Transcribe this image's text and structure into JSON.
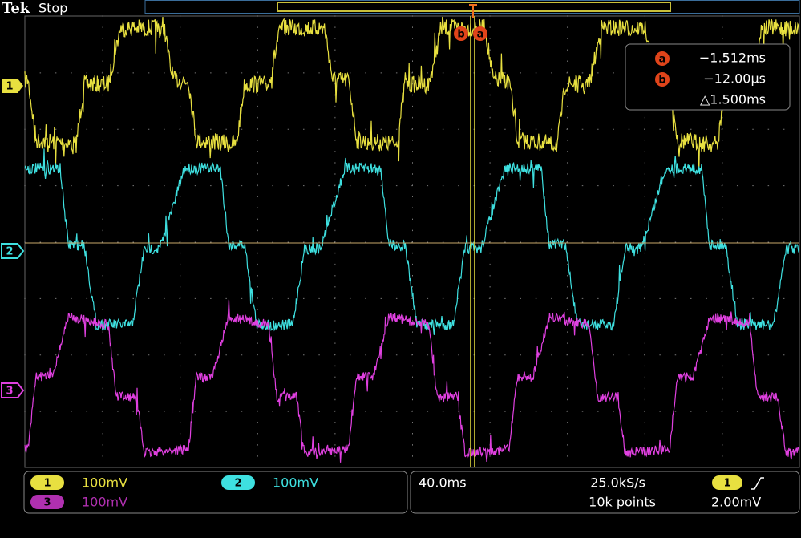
{
  "header": {
    "brand": "Tek",
    "status": "Stop"
  },
  "channel_markers": [
    "1",
    "2",
    "3"
  ],
  "cursors": {
    "labels": [
      "b",
      "a"
    ],
    "readout": [
      {
        "id": "a",
        "value": "−1.512ms"
      },
      {
        "id": "b",
        "value": "−12.00µs"
      }
    ],
    "delta": "△1.500ms"
  },
  "vertical": [
    {
      "channel": "1",
      "scale": "100mV"
    },
    {
      "channel": "2",
      "scale": "100mV"
    },
    {
      "channel": "3",
      "scale": "100mV"
    }
  ],
  "horizontal": {
    "scale": "40.0ms",
    "sample_rate": "25.0kS/s",
    "record_length": "10k points"
  },
  "trigger": {
    "source": "1",
    "level": "2.00mV"
  }
}
